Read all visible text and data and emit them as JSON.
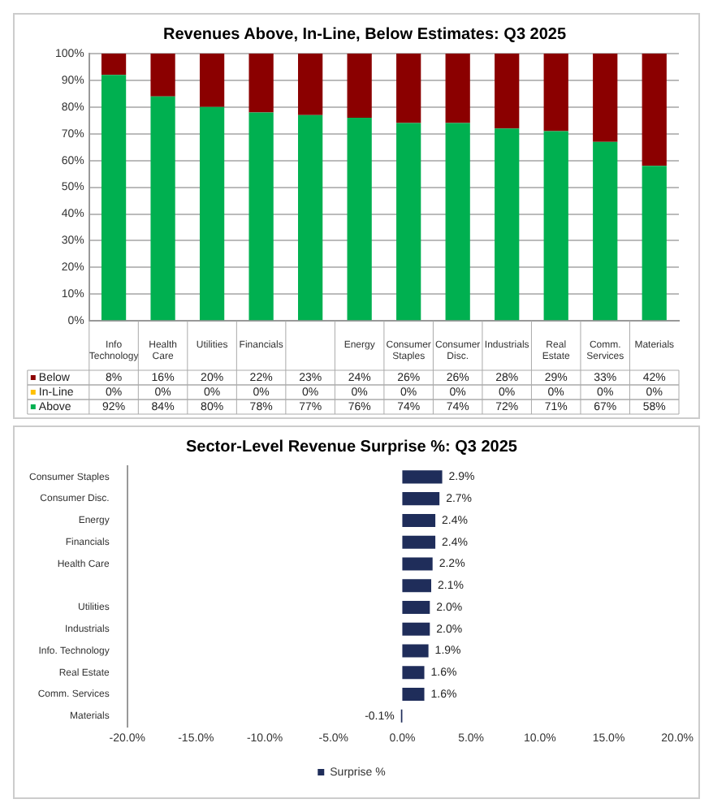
{
  "chart_data": [
    {
      "type": "bar",
      "title": "Revenues Above, In-Line, Below Estimates: Q3 2025",
      "stacked": true,
      "categories": [
        "Info Technology",
        "Health Care",
        "Utilities",
        "Financials",
        null,
        "Energy",
        "Consumer Staples",
        "Consumer Disc.",
        "Industrials",
        "Real Estate",
        "Comm. Services",
        "Materials"
      ],
      "series": [
        {
          "name": "Above",
          "color": "#00b050",
          "values": [
            92,
            84,
            80,
            78,
            77,
            76,
            74,
            74,
            72,
            71,
            67,
            58
          ],
          "value_labels": [
            "92%",
            "84%",
            "80%",
            "78%",
            "77%",
            "76%",
            "74%",
            "74%",
            "72%",
            "71%",
            "67%",
            "58%"
          ]
        },
        {
          "name": "In-Line",
          "color": "#ffc000",
          "values": [
            0,
            0,
            0,
            0,
            0,
            0,
            0,
            0,
            0,
            0,
            0,
            0
          ],
          "value_labels": [
            "0%",
            "0%",
            "0%",
            "0%",
            "0%",
            "0%",
            "0%",
            "0%",
            "0%",
            "0%",
            "0%",
            "0%"
          ]
        },
        {
          "name": "Below",
          "color": "#8b0000",
          "values": [
            8,
            16,
            20,
            22,
            23,
            24,
            26,
            26,
            28,
            29,
            33,
            42
          ],
          "value_labels": [
            "8%",
            "16%",
            "20%",
            "22%",
            "23%",
            "24%",
            "26%",
            "26%",
            "28%",
            "29%",
            "33%",
            "42%"
          ]
        }
      ],
      "ylim": [
        0,
        100
      ],
      "yticks": [
        {
          "value": 0,
          "label": "0%"
        },
        {
          "value": 10,
          "label": "10%"
        },
        {
          "value": 20,
          "label": "20%"
        },
        {
          "value": 30,
          "label": "30%"
        },
        {
          "value": 40,
          "label": "40%"
        },
        {
          "value": 50,
          "label": "50%"
        },
        {
          "value": 60,
          "label": "60%"
        },
        {
          "value": 70,
          "label": "70%"
        },
        {
          "value": 80,
          "label": "80%"
        },
        {
          "value": 90,
          "label": "90%"
        },
        {
          "value": 100,
          "label": "100%"
        }
      ],
      "grid": "y",
      "legend": "bottom"
    },
    {
      "type": "bar",
      "title": "Sector-Level Revenue Surprise %: Q3 2025",
      "orientation": "horizontal",
      "categories": [
        "Consumer Staples",
        "Consumer Disc.",
        "Energy",
        "Financials",
        "Health Care",
        null,
        "Utilities",
        "Industrials",
        "Info. Technology",
        "Real Estate",
        "Comm. Services",
        "Materials"
      ],
      "series": [
        {
          "name": "Surprise %",
          "color": "#1f2d5a",
          "values": [
            2.9,
            2.7,
            2.4,
            2.4,
            2.2,
            2.1,
            2.0,
            2.0,
            1.9,
            1.6,
            1.6,
            -0.1
          ],
          "value_labels": [
            "2.9%",
            "2.7%",
            "2.4%",
            "2.4%",
            "2.2%",
            "2.1%",
            "2.0%",
            "2.0%",
            "1.9%",
            "1.6%",
            "1.6%",
            "-0.1%"
          ]
        }
      ],
      "xlim": [
        -20,
        20
      ],
      "xticks": [
        {
          "value": -20,
          "label": "-20.0%"
        },
        {
          "value": -15,
          "label": "-15.0%"
        },
        {
          "value": -10,
          "label": "-10.0%"
        },
        {
          "value": -5,
          "label": "-5.0%"
        },
        {
          "value": 0,
          "label": "0.0%"
        },
        {
          "value": 5,
          "label": "5.0%"
        },
        {
          "value": 10,
          "label": "10.0%"
        },
        {
          "value": 15,
          "label": "15.0%"
        },
        {
          "value": 20,
          "label": "20.0%"
        }
      ],
      "grid": false,
      "legend": "bottom"
    }
  ]
}
